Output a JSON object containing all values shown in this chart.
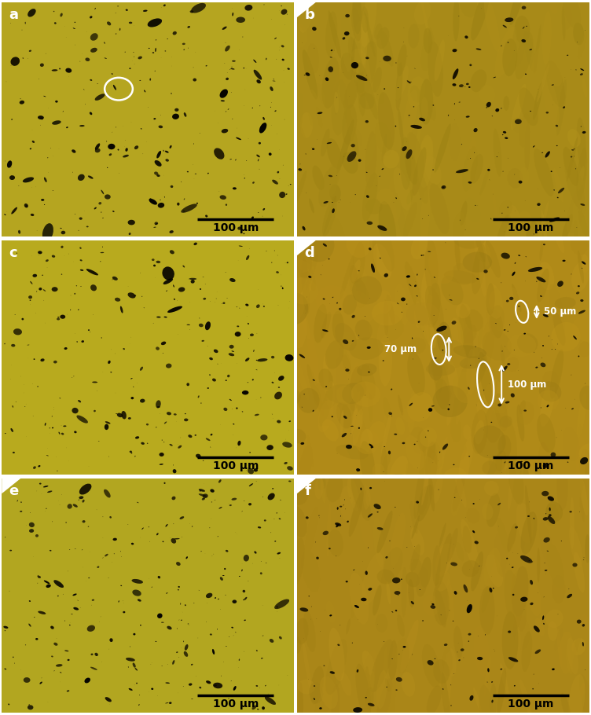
{
  "panels": [
    "a",
    "b",
    "c",
    "d",
    "e",
    "f"
  ],
  "bg_colors": {
    "a": "#b5a520",
    "b": "#a88a18",
    "c": "#b8aa1e",
    "d": "#b08a18",
    "e": "#b2a620",
    "f": "#aa8618"
  },
  "label_color": "white",
  "scalebar_text": "100 μm",
  "outer_bg": "#ffffff",
  "panel_label_fontsize": 13,
  "scalebar_fontsize": 10,
  "annotation_d": {
    "label1": "50 μm",
    "label2": "70 μm",
    "label3": "100 μm"
  },
  "notch_panels": [
    "b",
    "d",
    "e",
    "f"
  ],
  "circle_panel": "a",
  "annotation_panel": "d"
}
